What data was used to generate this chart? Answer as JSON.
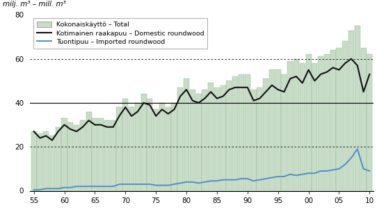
{
  "years": [
    1955,
    1956,
    1957,
    1958,
    1959,
    1960,
    1961,
    1962,
    1963,
    1964,
    1965,
    1966,
    1967,
    1968,
    1969,
    1970,
    1971,
    1972,
    1973,
    1974,
    1975,
    1976,
    1977,
    1978,
    1979,
    1980,
    1981,
    1982,
    1983,
    1984,
    1985,
    1986,
    1987,
    1988,
    1989,
    1990,
    1991,
    1992,
    1993,
    1994,
    1995,
    1996,
    1997,
    1998,
    1999,
    2000,
    2001,
    2002,
    2003,
    2004,
    2005,
    2006,
    2007,
    2008,
    2009,
    2010
  ],
  "total": [
    27,
    26,
    27,
    25,
    29,
    33,
    31,
    30,
    32,
    36,
    33,
    33,
    32,
    32,
    38,
    42,
    38,
    40,
    44,
    42,
    37,
    40,
    38,
    40,
    47,
    51,
    46,
    44,
    46,
    49,
    47,
    48,
    50,
    52,
    53,
    53,
    46,
    47,
    51,
    55,
    55,
    53,
    59,
    60,
    58,
    62,
    58,
    61,
    62,
    64,
    65,
    68,
    73,
    75,
    65,
    62
  ],
  "domestic": [
    27,
    24,
    25,
    23,
    27,
    30,
    28,
    27,
    29,
    32,
    30,
    30,
    29,
    29,
    34,
    38,
    34,
    36,
    40,
    39,
    34,
    37,
    35,
    37,
    43,
    46,
    41,
    40,
    42,
    45,
    42,
    43,
    46,
    47,
    47,
    47,
    41,
    42,
    45,
    48,
    46,
    45,
    51,
    52,
    49,
    55,
    50,
    53,
    54,
    56,
    55,
    58,
    60,
    57,
    45,
    53
  ],
  "imported": [
    0.5,
    0.5,
    1,
    1,
    1,
    1.5,
    1.5,
    2,
    2,
    2,
    2,
    2,
    2,
    2,
    3,
    3,
    3,
    3,
    3,
    3,
    2.5,
    2.5,
    2.5,
    3,
    3.5,
    4,
    4,
    3.5,
    4,
    4.5,
    4.5,
    5,
    5,
    5,
    5.5,
    5.5,
    4.5,
    5,
    5.5,
    6,
    6.5,
    6.5,
    7.5,
    7,
    7.5,
    8,
    8,
    9,
    9,
    9.5,
    10,
    12,
    15,
    19,
    10,
    9
  ],
  "bar_color": "#c8dcc8",
  "bar_edge_color": "#8ab88a",
  "domestic_color": "#111111",
  "imported_color": "#4d8fcc",
  "title_label": "milj. m³ – mill. m³",
  "legend_total": "Kokonaiskäyttö – Total",
  "legend_domestic": "Kotimainen raakapuu – Domestic roundwood",
  "legend_imported": "Tuontipuu – Imported roundwood",
  "yticks": [
    0,
    20,
    40,
    60,
    80
  ],
  "xlabels": [
    "55",
    "60",
    "65",
    "70",
    "75",
    "80",
    "85",
    "90",
    "95",
    "00",
    "05",
    "10"
  ],
  "xtick_years": [
    1955,
    1960,
    1965,
    1970,
    1975,
    1980,
    1985,
    1990,
    1995,
    2000,
    2005,
    2010
  ],
  "ymin": 0,
  "ymax": 80,
  "solid_yticks": [
    0,
    40
  ],
  "dotted_yticks": [
    20,
    60
  ]
}
